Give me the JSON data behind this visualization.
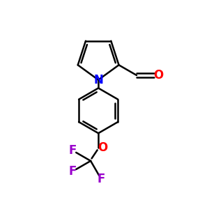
{
  "background_color": "#ffffff",
  "bond_color": "#000000",
  "N_color": "#0000ff",
  "O_color": "#ff0000",
  "F_color": "#9900cc",
  "line_width": 1.8,
  "figsize": [
    3.0,
    3.0
  ],
  "dpi": 100,
  "xlim": [
    0,
    10
  ],
  "ylim": [
    0,
    10
  ]
}
